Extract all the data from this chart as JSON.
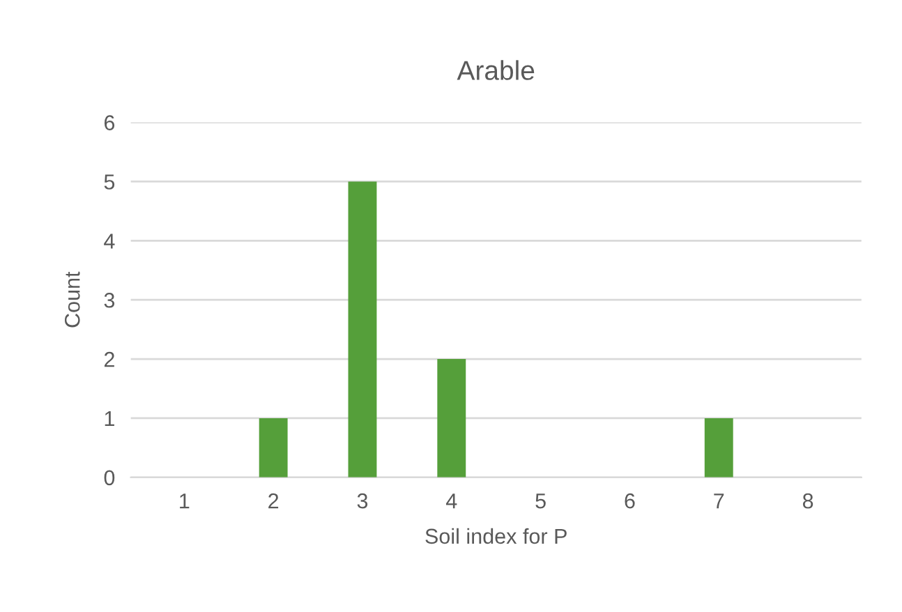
{
  "chart_data": {
    "type": "bar",
    "title": "Arable",
    "xlabel": "Soil index for P",
    "ylabel": "Count",
    "categories": [
      "1",
      "2",
      "3",
      "4",
      "5",
      "6",
      "7",
      "8"
    ],
    "values": [
      0,
      1,
      5,
      2,
      0,
      0,
      1,
      0
    ],
    "color": "#559f3a",
    "ylim": [
      0,
      6
    ],
    "yticks": [
      0,
      1,
      2,
      3,
      4,
      5,
      6
    ],
    "grid": "y"
  }
}
